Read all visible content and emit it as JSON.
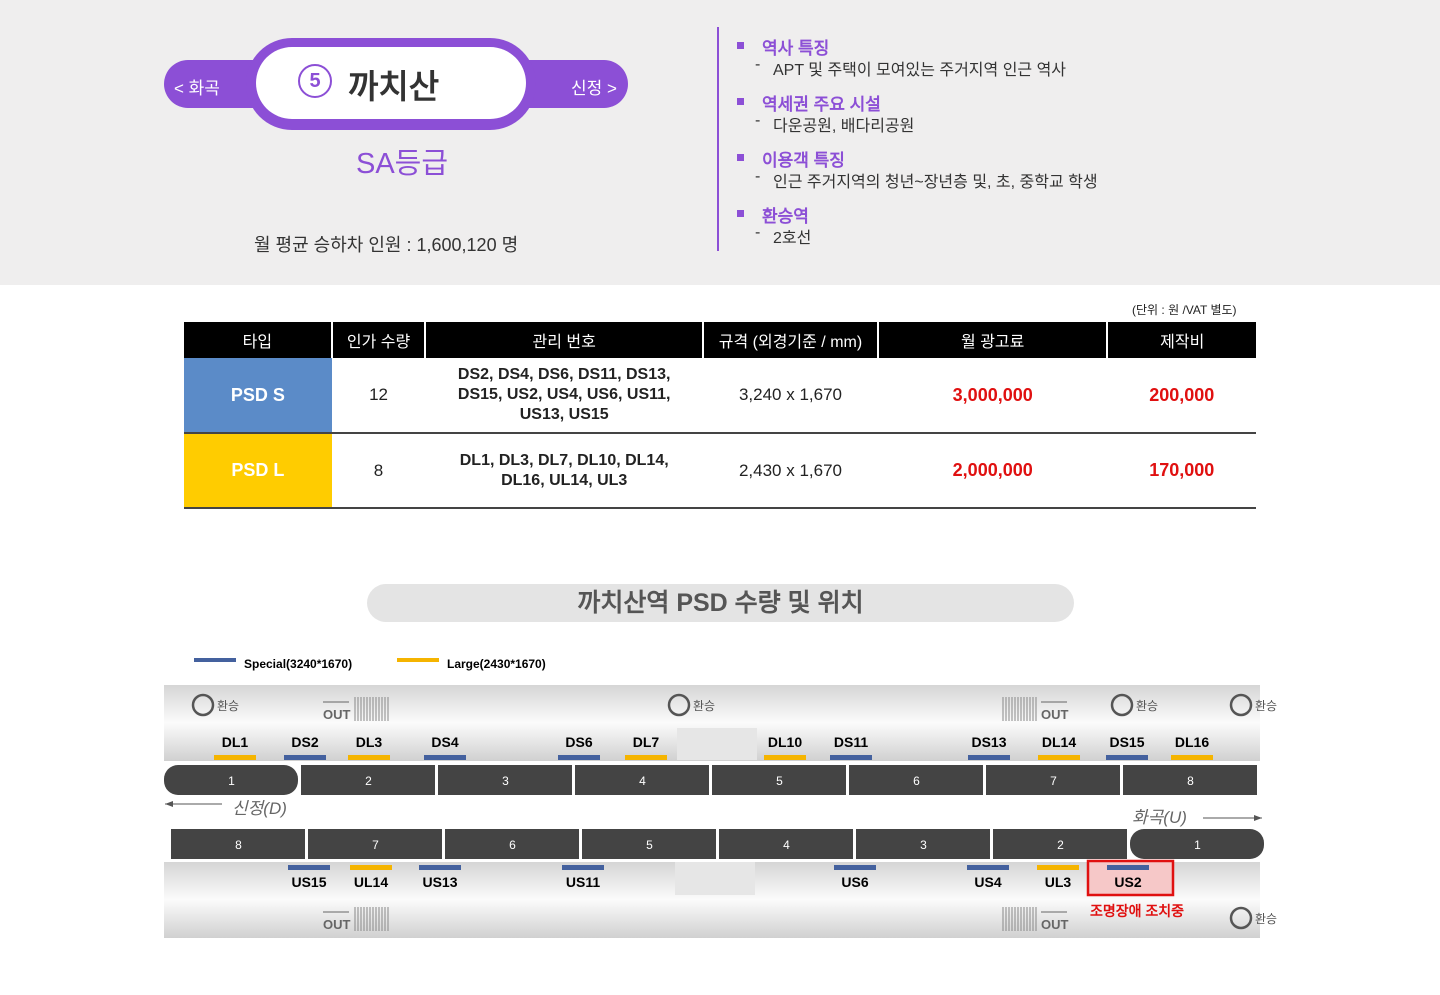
{
  "station": {
    "prev": "< 화곡",
    "next": "신정 >",
    "number": "5",
    "name": "까치산",
    "grade": "SA등급",
    "ridership_label": "월 평균 승하차 인원 :",
    "ridership_value": "1,600,120 명"
  },
  "features": [
    {
      "title": "역사 특징",
      "detail": "APT 및 주택이 모여있는 주거지역 인근 역사"
    },
    {
      "title": "역세권 주요 시설",
      "detail": "다운공원, 배다리공원"
    },
    {
      "title": "이용객 특징",
      "detail": "인근 주거지역의 청년~장년층 및, 초, 중학교 학생"
    },
    {
      "title": "환승역",
      "detail": "2호선"
    }
  ],
  "table": {
    "unit_note": "(단위 : 원 /VAT 별도)",
    "header": [
      "타입",
      "인가 수량",
      "관리 번호",
      "규격 (외경기준 / mm)",
      "월 광고료",
      "제작비"
    ],
    "rows": [
      [
        "PSD S",
        "12",
        "DS2, DS4, DS6, DS11, DS13, DS15, US2, US4, US6, US11, US13, US15",
        "3,240 x 1,670",
        "3,000,000",
        "200,000"
      ],
      [
        "PSD L",
        "8",
        "DL1, DL3, DL7, DL10, DL14, DL16, UL14, UL3",
        "2,430 x 1,670",
        "2,000,000",
        "170,000"
      ]
    ]
  },
  "diagram": {
    "title": "까치산역  PSD 수량 및 위치",
    "legend": [
      {
        "label": "Special(3240*1670)",
        "color": "#44619e"
      },
      {
        "label": "Large(2430*1670)",
        "color": "#f5b400"
      }
    ],
    "transfer": "환승",
    "exit": "OUT",
    "upper_direction": "신정(D)",
    "lower_direction": "화곡(U)",
    "upper_cars": [
      "1",
      "2",
      "3",
      "4",
      "5",
      "6",
      "7",
      "8"
    ],
    "lower_cars": [
      "8",
      "7",
      "6",
      "5",
      "4",
      "3",
      "2",
      "1"
    ],
    "upper_doors": [
      "DL1",
      "DS2",
      "DL3",
      "DS4",
      "DS6",
      "DL7",
      "DL10",
      "DS11",
      "DS13",
      "DL14",
      "DS15",
      "DL16"
    ],
    "lower_doors": [
      "US15",
      "UL14",
      "US13",
      "US11",
      "US6",
      "US4",
      "UL3",
      "US2"
    ],
    "note": "조명장애 조치중"
  }
}
